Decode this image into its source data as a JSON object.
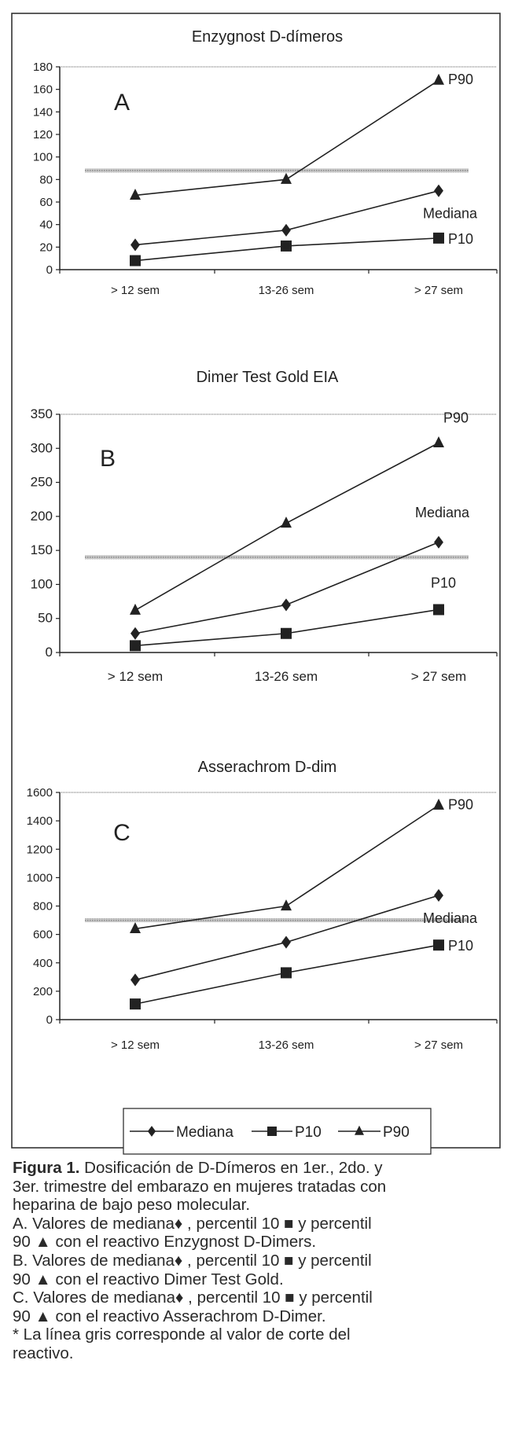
{
  "chart_data": [
    {
      "type": "line",
      "title": "Enzygnost D-dímeros",
      "panel_letter": "A",
      "categories": [
        "> 12 sem",
        "13-26 sem",
        "> 27 sem"
      ],
      "ylim": [
        0,
        180
      ],
      "yticks": [
        0,
        20,
        40,
        60,
        80,
        100,
        120,
        140,
        160,
        180
      ],
      "cutoff": 88,
      "series": [
        {
          "name": "Mediana",
          "marker": "diamond",
          "values": [
            22,
            35,
            70
          ]
        },
        {
          "name": "P10",
          "marker": "square",
          "values": [
            8,
            21,
            28
          ]
        },
        {
          "name": "P90",
          "marker": "triangle",
          "values": [
            66,
            80,
            168
          ]
        }
      ]
    },
    {
      "type": "line",
      "title": "Dimer Test Gold EIA",
      "panel_letter": "B",
      "categories": [
        "> 12 sem",
        "13-26 sem",
        "> 27 sem"
      ],
      "ylim": [
        0,
        350
      ],
      "yticks": [
        0,
        50,
        100,
        150,
        200,
        250,
        300,
        350
      ],
      "cutoff": 140,
      "series": [
        {
          "name": "Mediana",
          "marker": "diamond",
          "values": [
            28,
            70,
            162
          ]
        },
        {
          "name": "P10",
          "marker": "square",
          "values": [
            10,
            28,
            63
          ]
        },
        {
          "name": "P90",
          "marker": "triangle",
          "values": [
            62,
            190,
            308
          ]
        }
      ]
    },
    {
      "type": "line",
      "title": "Asserachrom D-dim",
      "panel_letter": "C",
      "categories": [
        "> 12 sem",
        "13-26 sem",
        "> 27 sem"
      ],
      "ylim": [
        0,
        1600
      ],
      "yticks": [
        0,
        200,
        400,
        600,
        800,
        1000,
        1200,
        1400,
        1600
      ],
      "cutoff": 700,
      "series": [
        {
          "name": "Mediana",
          "marker": "diamond",
          "values": [
            280,
            545,
            875
          ]
        },
        {
          "name": "P10",
          "marker": "square",
          "values": [
            110,
            330,
            525
          ]
        },
        {
          "name": "P90",
          "marker": "triangle",
          "values": [
            640,
            800,
            1510
          ]
        }
      ]
    }
  ],
  "legend": {
    "placement": "bottom-center",
    "items": [
      "Mediana",
      "P10",
      "P90"
    ]
  },
  "colors": {
    "series": "#222222",
    "cutoff": "#a8a8a8",
    "frame": "#333333"
  },
  "caption": {
    "label": "Figura 1.",
    "line1": " Dosificación de D-Dímeros en 1er., 2do. y",
    "line2": "3er. trimestre del embarazo en mujeres tratadas con",
    "line3": "heparina de bajo peso molecular.",
    "a1": "A. Valores de mediana",
    "a2": " , percentil 10 ",
    "a3": " y percentil",
    "a4": "90 ",
    "a5": "  con el reactivo Enzygnost D-Dimers.",
    "b1": "B. Valores de mediana",
    "b2": " , percentil 10 ",
    "b3": " y percentil",
    "b4": "90 ",
    "b5": "  con el reactivo Dimer Test Gold.",
    "c1": "C. Valores de mediana",
    "c2": " , percentil 10 ",
    "c3": " y percentil",
    "c4": "90 ",
    "c5": "  con el reactivo Asserachrom D-Dimer.",
    "note1": "* La línea gris corresponde al valor de corte del",
    "note2": "reactivo.",
    "sym_diamond": "♦",
    "sym_square": "■",
    "sym_triangle": "▲"
  }
}
